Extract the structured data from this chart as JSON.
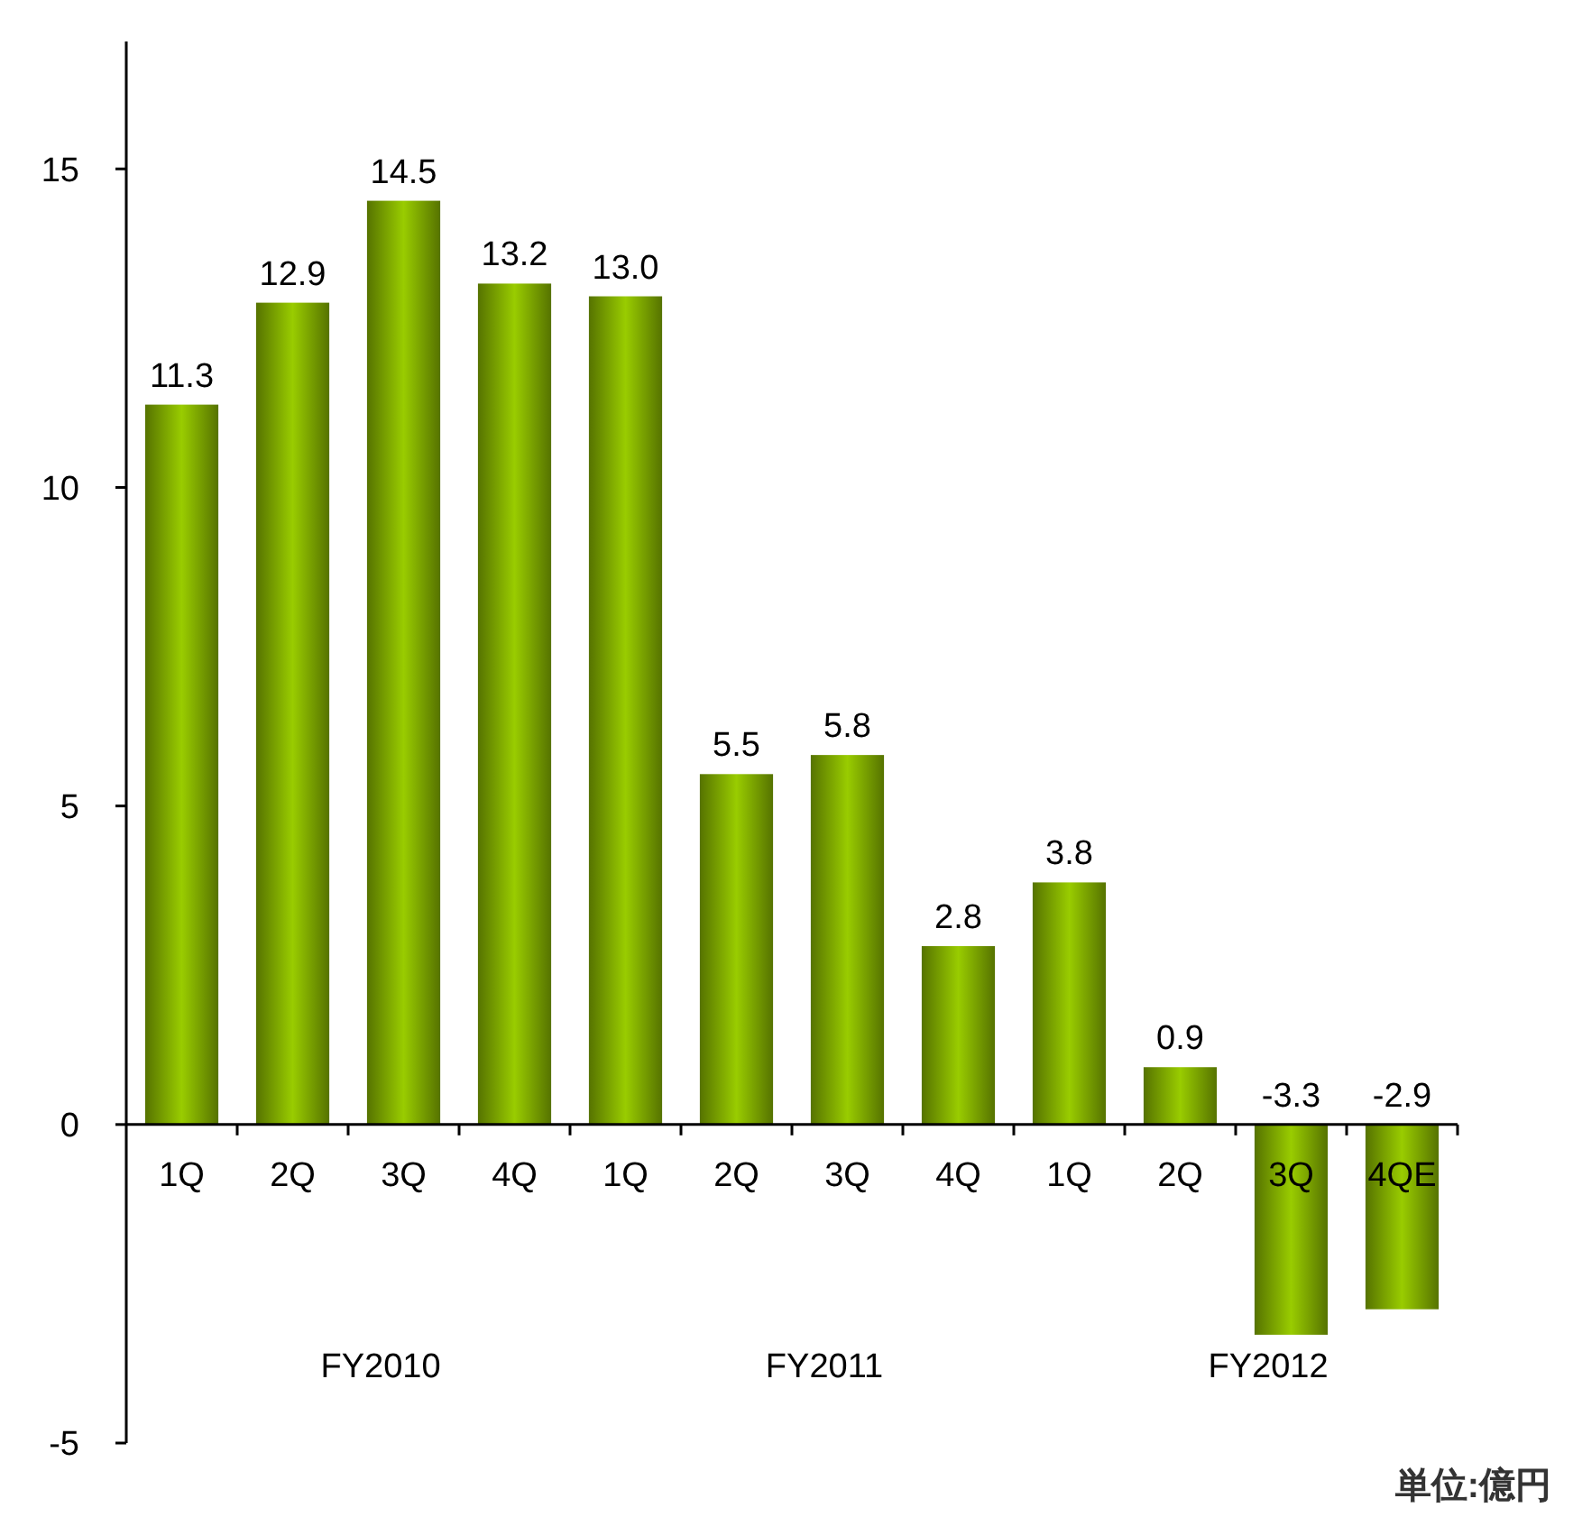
{
  "chart_data": {
    "type": "bar",
    "categories": [
      "1Q",
      "2Q",
      "3Q",
      "4Q",
      "1Q",
      "2Q",
      "3Q",
      "4Q",
      "1Q",
      "2Q",
      "3Q",
      "4QE"
    ],
    "values": [
      11.3,
      12.9,
      14.5,
      13.2,
      13.0,
      5.5,
      5.8,
      2.8,
      3.8,
      0.9,
      -3.3,
      -2.9
    ],
    "value_labels": [
      "11.3",
      "12.9",
      "14.5",
      "13.2",
      "13.0",
      "5.5",
      "5.8",
      "2.8",
      "3.8",
      "0.9",
      "-3.3",
      "-2.9"
    ],
    "color": "#99cc00",
    "ylim": [
      -5,
      17
    ],
    "yticks": [
      -5,
      0,
      5,
      10,
      15
    ],
    "grid": false,
    "ylabel": "単位:億円",
    "annotations": [
      "FY2010",
      "FY2011",
      "FY2012"
    ]
  }
}
